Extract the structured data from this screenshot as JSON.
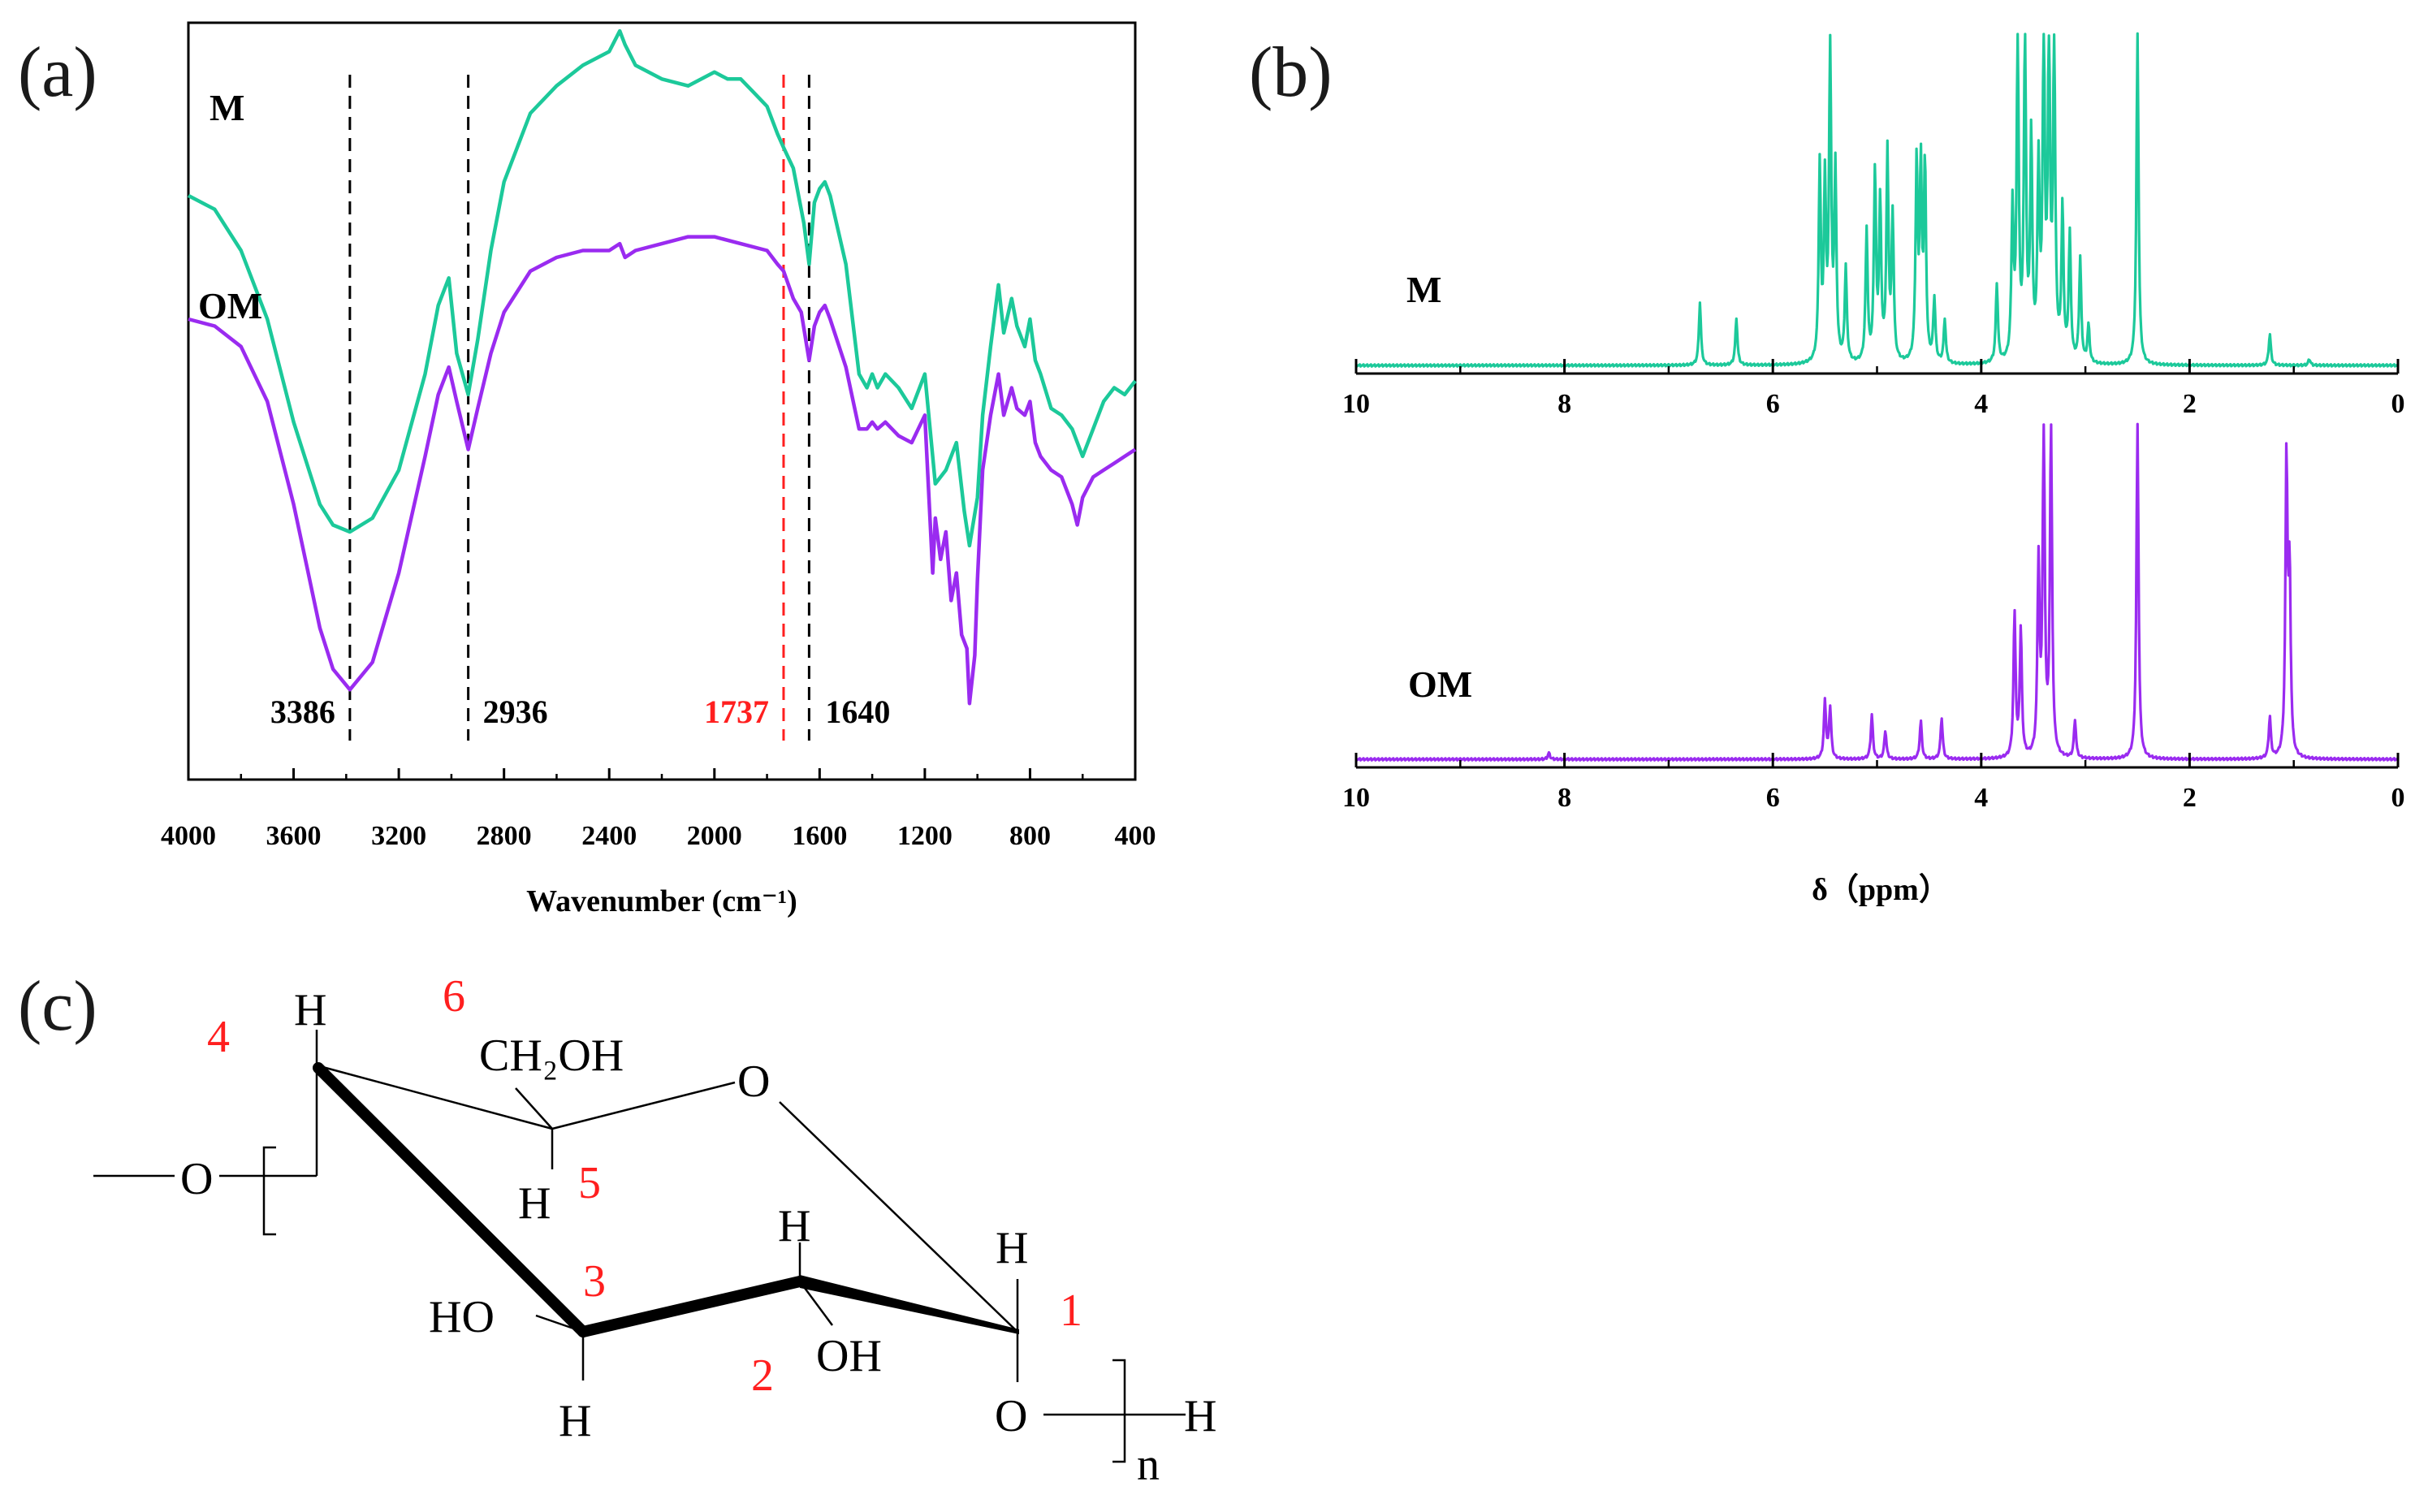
{
  "colors": {
    "M": "#1CC99A",
    "OM": "#9A2BF0",
    "highlight": "#FF1F1F",
    "ink": "#000000"
  },
  "panel_labels": {
    "a": "(a)",
    "b": "(b)",
    "c": "(c)"
  },
  "chart_data": [
    {
      "id": "a",
      "type": "line",
      "title": "",
      "xlabel": "Wavenumber (cm⁻¹)",
      "ylabel": "",
      "xlim": [
        4000,
        400
      ],
      "xticks": [
        4000,
        3600,
        3200,
        2800,
        2400,
        2000,
        1600,
        1200,
        800,
        400
      ],
      "series": [
        {
          "name": "M",
          "color": "#1CC99A",
          "x": [
            4000,
            3900,
            3800,
            3700,
            3600,
            3500,
            3450,
            3386,
            3300,
            3200,
            3100,
            3050,
            3010,
            2980,
            2936,
            2900,
            2850,
            2800,
            2700,
            2600,
            2500,
            2400,
            2360,
            2340,
            2300,
            2200,
            2100,
            2000,
            1950,
            1900,
            1850,
            1800,
            1760,
            1737,
            1700,
            1660,
            1640,
            1620,
            1600,
            1580,
            1560,
            1500,
            1450,
            1420,
            1400,
            1380,
            1350,
            1300,
            1250,
            1200,
            1160,
            1120,
            1080,
            1050,
            1030,
            1000,
            980,
            950,
            920,
            900,
            870,
            850,
            820,
            800,
            780,
            760,
            720,
            680,
            640,
            600,
            560,
            520,
            480,
            440,
            400
          ],
          "y": [
            0.78,
            0.76,
            0.7,
            0.6,
            0.45,
            0.33,
            0.3,
            0.29,
            0.31,
            0.38,
            0.52,
            0.62,
            0.66,
            0.55,
            0.49,
            0.57,
            0.7,
            0.8,
            0.9,
            0.94,
            0.97,
            0.99,
            1.02,
            1.0,
            0.97,
            0.95,
            0.94,
            0.96,
            0.95,
            0.95,
            0.93,
            0.91,
            0.87,
            0.85,
            0.82,
            0.74,
            0.68,
            0.77,
            0.79,
            0.8,
            0.78,
            0.68,
            0.52,
            0.5,
            0.52,
            0.5,
            0.52,
            0.5,
            0.47,
            0.52,
            0.36,
            0.38,
            0.42,
            0.32,
            0.27,
            0.34,
            0.46,
            0.56,
            0.65,
            0.58,
            0.63,
            0.59,
            0.56,
            0.6,
            0.54,
            0.52,
            0.47,
            0.46,
            0.44,
            0.4,
            0.44,
            0.48,
            0.5,
            0.49,
            0.51
          ]
        },
        {
          "name": "OM",
          "color": "#9A2BF0",
          "x": [
            4000,
            3900,
            3800,
            3700,
            3600,
            3550,
            3500,
            3450,
            3386,
            3300,
            3200,
            3100,
            3050,
            3010,
            2980,
            2936,
            2900,
            2850,
            2800,
            2700,
            2600,
            2500,
            2400,
            2360,
            2340,
            2300,
            2200,
            2100,
            2000,
            1900,
            1800,
            1760,
            1737,
            1700,
            1670,
            1640,
            1620,
            1600,
            1580,
            1560,
            1500,
            1450,
            1420,
            1400,
            1380,
            1350,
            1300,
            1250,
            1200,
            1170,
            1160,
            1140,
            1120,
            1100,
            1080,
            1060,
            1040,
            1030,
            1010,
            1000,
            980,
            950,
            920,
            900,
            870,
            850,
            820,
            800,
            780,
            760,
            720,
            680,
            640,
            620,
            600,
            560,
            520,
            480,
            440,
            400
          ],
          "y": [
            0.6,
            0.59,
            0.56,
            0.48,
            0.33,
            0.24,
            0.15,
            0.09,
            0.06,
            0.1,
            0.23,
            0.4,
            0.49,
            0.53,
            0.48,
            0.41,
            0.47,
            0.55,
            0.61,
            0.67,
            0.69,
            0.7,
            0.7,
            0.71,
            0.69,
            0.7,
            0.71,
            0.72,
            0.72,
            0.71,
            0.7,
            0.68,
            0.67,
            0.63,
            0.61,
            0.54,
            0.59,
            0.61,
            0.62,
            0.6,
            0.53,
            0.44,
            0.44,
            0.45,
            0.44,
            0.45,
            0.43,
            0.42,
            0.46,
            0.23,
            0.31,
            0.25,
            0.29,
            0.19,
            0.23,
            0.14,
            0.12,
            0.04,
            0.11,
            0.22,
            0.38,
            0.46,
            0.52,
            0.46,
            0.5,
            0.47,
            0.46,
            0.48,
            0.42,
            0.4,
            0.38,
            0.37,
            0.33,
            0.3,
            0.34,
            0.37,
            0.38,
            0.39,
            0.4,
            0.41
          ]
        }
      ],
      "vlines": [
        {
          "x": 3386,
          "label": "3386",
          "color": "#000000"
        },
        {
          "x": 2936,
          "label": "2936",
          "color": "#000000"
        },
        {
          "x": 1737,
          "label": "1737",
          "color": "#FF1F1F"
        },
        {
          "x": 1640,
          "label": "1640",
          "color": "#000000"
        }
      ]
    },
    {
      "id": "b-top",
      "type": "line",
      "title": "",
      "xlabel": "",
      "series_label": "M",
      "color": "#1CC99A",
      "xlim": [
        10,
        0
      ],
      "xticks": [
        10,
        8,
        6,
        4,
        2,
        0
      ],
      "peaks": [
        {
          "x": 6.7,
          "h": 0.2
        },
        {
          "x": 6.35,
          "h": 0.15
        },
        {
          "x": 5.55,
          "h": 0.62
        },
        {
          "x": 5.5,
          "h": 0.55
        },
        {
          "x": 5.45,
          "h": 1.0
        },
        {
          "x": 5.4,
          "h": 0.6
        },
        {
          "x": 5.3,
          "h": 0.3
        },
        {
          "x": 5.1,
          "h": 0.42
        },
        {
          "x": 5.02,
          "h": 0.6
        },
        {
          "x": 4.97,
          "h": 0.5
        },
        {
          "x": 4.9,
          "h": 0.66
        },
        {
          "x": 4.85,
          "h": 0.46
        },
        {
          "x": 4.62,
          "h": 0.63
        },
        {
          "x": 4.58,
          "h": 0.6
        },
        {
          "x": 4.54,
          "h": 0.62
        },
        {
          "x": 4.45,
          "h": 0.2
        },
        {
          "x": 4.35,
          "h": 0.14
        },
        {
          "x": 3.85,
          "h": 0.25
        },
        {
          "x": 3.7,
          "h": 0.48
        },
        {
          "x": 3.65,
          "h": 1.05
        },
        {
          "x": 3.58,
          "h": 1.05
        },
        {
          "x": 3.52,
          "h": 0.7
        },
        {
          "x": 3.45,
          "h": 0.6
        },
        {
          "x": 3.4,
          "h": 1.05
        },
        {
          "x": 3.35,
          "h": 1.05
        },
        {
          "x": 3.3,
          "h": 1.05
        },
        {
          "x": 3.22,
          "h": 0.48
        },
        {
          "x": 3.15,
          "h": 0.4
        },
        {
          "x": 3.05,
          "h": 0.33
        },
        {
          "x": 2.97,
          "h": 0.12
        },
        {
          "x": 2.5,
          "h": 1.05
        },
        {
          "x": 1.23,
          "h": 0.1
        },
        {
          "x": 0.85,
          "h": 0.02
        }
      ]
    },
    {
      "id": "b-bottom",
      "type": "line",
      "title": "",
      "xlabel": "δ（ppm）",
      "series_label": "OM",
      "color": "#9A2BF0",
      "xlim": [
        10,
        0
      ],
      "xticks": [
        10,
        8,
        6,
        4,
        2,
        0
      ],
      "peaks": [
        {
          "x": 8.15,
          "h": 0.02
        },
        {
          "x": 5.5,
          "h": 0.18
        },
        {
          "x": 5.45,
          "h": 0.16
        },
        {
          "x": 5.05,
          "h": 0.14
        },
        {
          "x": 4.92,
          "h": 0.09
        },
        {
          "x": 4.58,
          "h": 0.12
        },
        {
          "x": 4.38,
          "h": 0.13
        },
        {
          "x": 3.68,
          "h": 0.45
        },
        {
          "x": 3.62,
          "h": 0.4
        },
        {
          "x": 3.45,
          "h": 0.6
        },
        {
          "x": 3.4,
          "h": 1.05
        },
        {
          "x": 3.33,
          "h": 1.05
        },
        {
          "x": 3.1,
          "h": 0.12
        },
        {
          "x": 2.5,
          "h": 1.05
        },
        {
          "x": 1.23,
          "h": 0.13
        },
        {
          "x": 1.07,
          "h": 0.93
        },
        {
          "x": 1.04,
          "h": 0.56
        }
      ]
    }
  ],
  "structure": {
    "atoms": {
      "h4": "H",
      "ch2oh": "CH₂OH",
      "o_ring": "O",
      "o_left": "O",
      "h5": "H",
      "h2": "H",
      "h1": "H",
      "ho3": "HO",
      "oh2": "OH",
      "h3": "H",
      "o1": "O",
      "h_end": "H",
      "n": "n"
    },
    "numbers": {
      "n1": "1",
      "n2": "2",
      "n3": "3",
      "n4": "4",
      "n5": "5",
      "n6": "6"
    }
  }
}
